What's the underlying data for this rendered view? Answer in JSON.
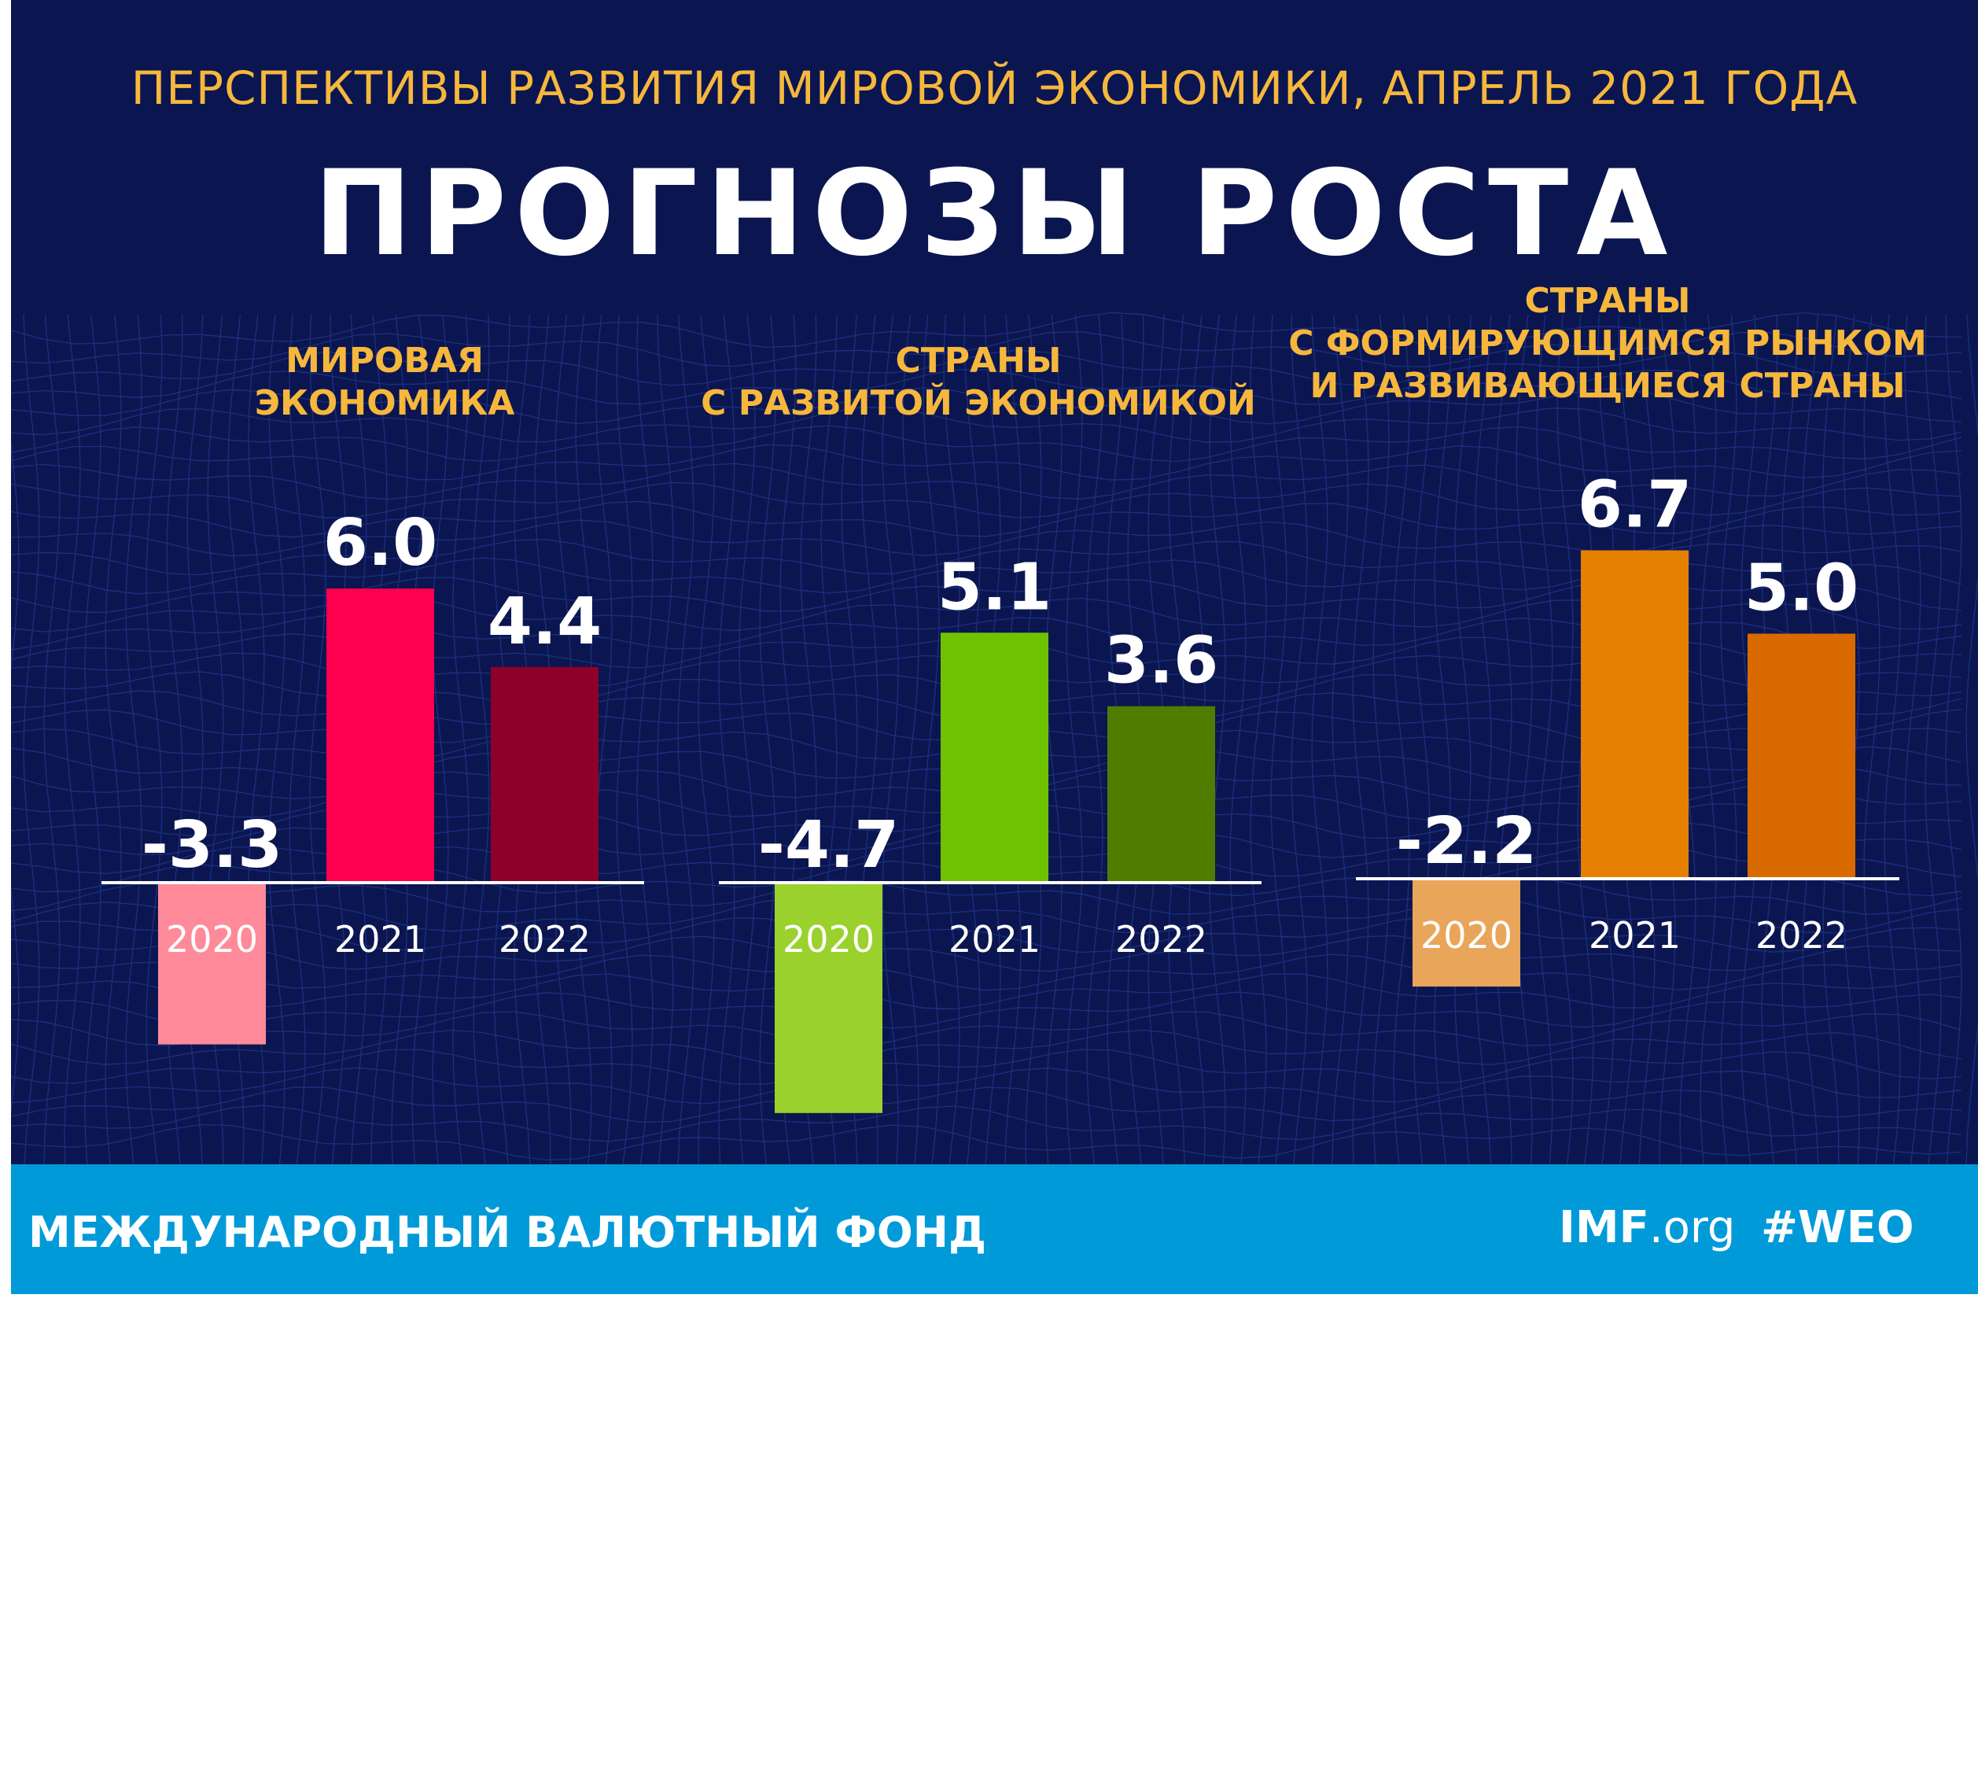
{
  "header": {
    "subtitle": "ПЕРСПЕКТИВЫ РАЗВИТИЯ МИРОВОЙ ЭКОНОМИКИ, АПРЕЛЬ 2021 ГОДА",
    "title": "ПРОГНОЗЫ РОСТА"
  },
  "colors": {
    "background": "#0b1650",
    "accent_text": "#f6b73c",
    "footer": "#009ad9"
  },
  "chart_data": [
    {
      "type": "bar",
      "title_lines": [
        "МИРОВАЯ",
        "ЭКОНОМИКА"
      ],
      "categories": [
        "2020",
        "2021",
        "2022"
      ],
      "values": [
        -3.3,
        6.0,
        4.4
      ],
      "value_labels": [
        "-3.3",
        "6.0",
        "4.4"
      ],
      "colors": [
        "#ff8a99",
        "#ff004e",
        "#8e0029"
      ]
    },
    {
      "type": "bar",
      "title_lines": [
        "СТРАНЫ",
        "С РАЗВИТОЙ ЭКОНОМИКОЙ"
      ],
      "categories": [
        "2020",
        "2021",
        "2022"
      ],
      "values": [
        -4.7,
        5.1,
        3.6
      ],
      "value_labels": [
        "-4.7",
        "5.1",
        "3.6"
      ],
      "colors": [
        "#9ad12c",
        "#6fc200",
        "#4f7d00"
      ]
    },
    {
      "type": "bar",
      "title_lines": [
        "СТРАНЫ",
        "С ФОРМИРУЮЩИМСЯ РЫНКОМ",
        "И РАЗВИВАЮЩИЕСЯ СТРАНЫ"
      ],
      "categories": [
        "2020",
        "2021",
        "2022"
      ],
      "values": [
        -2.2,
        6.7,
        5.0
      ],
      "value_labels": [
        "-2.2",
        "6.7",
        "5.0"
      ],
      "colors": [
        "#e9a55a",
        "#e58000",
        "#d96a00"
      ]
    }
  ],
  "footer": {
    "org_name": "МЕЖДУНАРОДНЫЙ ВАЛЮТНЫЙ ФОНД",
    "site_bold": "IMF",
    "site_rest": ".org",
    "hashtag": "#WEO"
  }
}
